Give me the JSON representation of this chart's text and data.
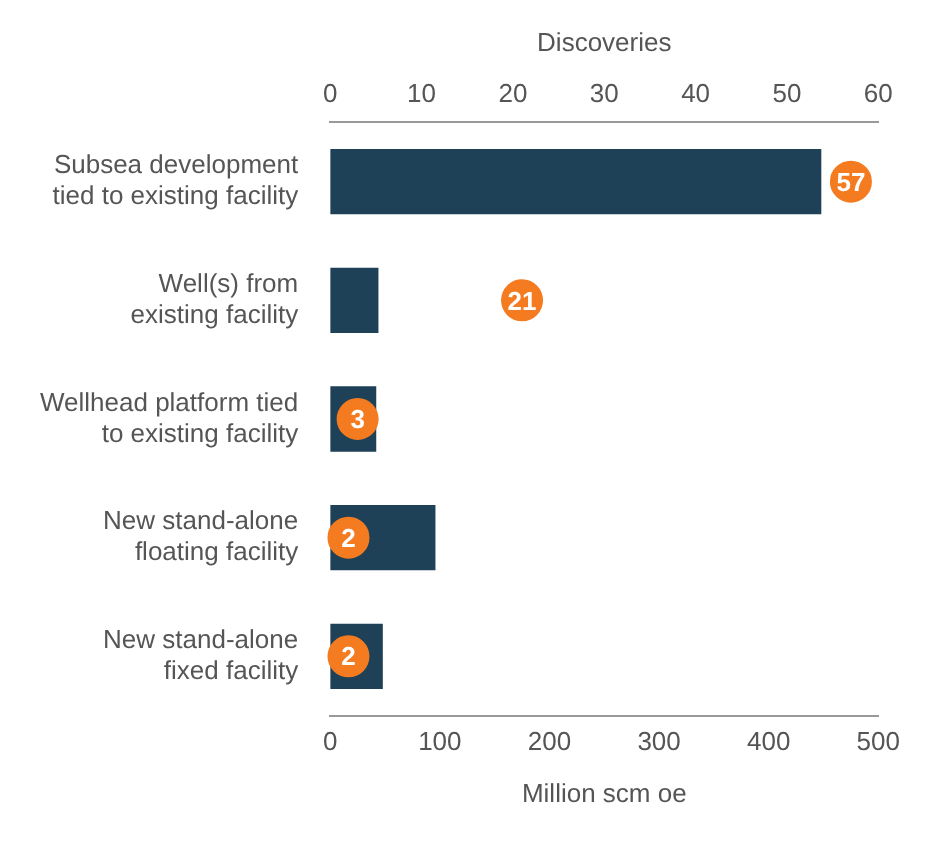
{
  "chart_data": {
    "type": "bar",
    "orientation": "horizontal",
    "xlabel": "Million scm oe",
    "x2label": "Discoveries",
    "categories": [
      "Subsea development\ntied to existing facility",
      "Well(s) from\nexisting facility",
      "Wellhead platform tied\nto existing facility",
      "New stand-alone\nfloating facility",
      "New stand-alone\nfixed facility"
    ],
    "series": [
      {
        "color": "#1f4157",
        "values": [
          448,
          44,
          42,
          96,
          48
        ]
      },
      {
        "type": "scatter",
        "axis": "x2",
        "color": "#f47b20",
        "marker": "circle",
        "values": [
          57,
          21,
          3,
          2,
          2
        ],
        "value_labels": [
          "57",
          "21",
          "3",
          "2",
          "2"
        ]
      }
    ],
    "xlim": [
      0,
      500
    ],
    "xticks": [
      0,
      100,
      200,
      300,
      400,
      500
    ],
    "x2lim": [
      0,
      60
    ],
    "x2ticks": [
      0,
      10,
      20,
      30,
      40,
      50,
      60
    ]
  }
}
